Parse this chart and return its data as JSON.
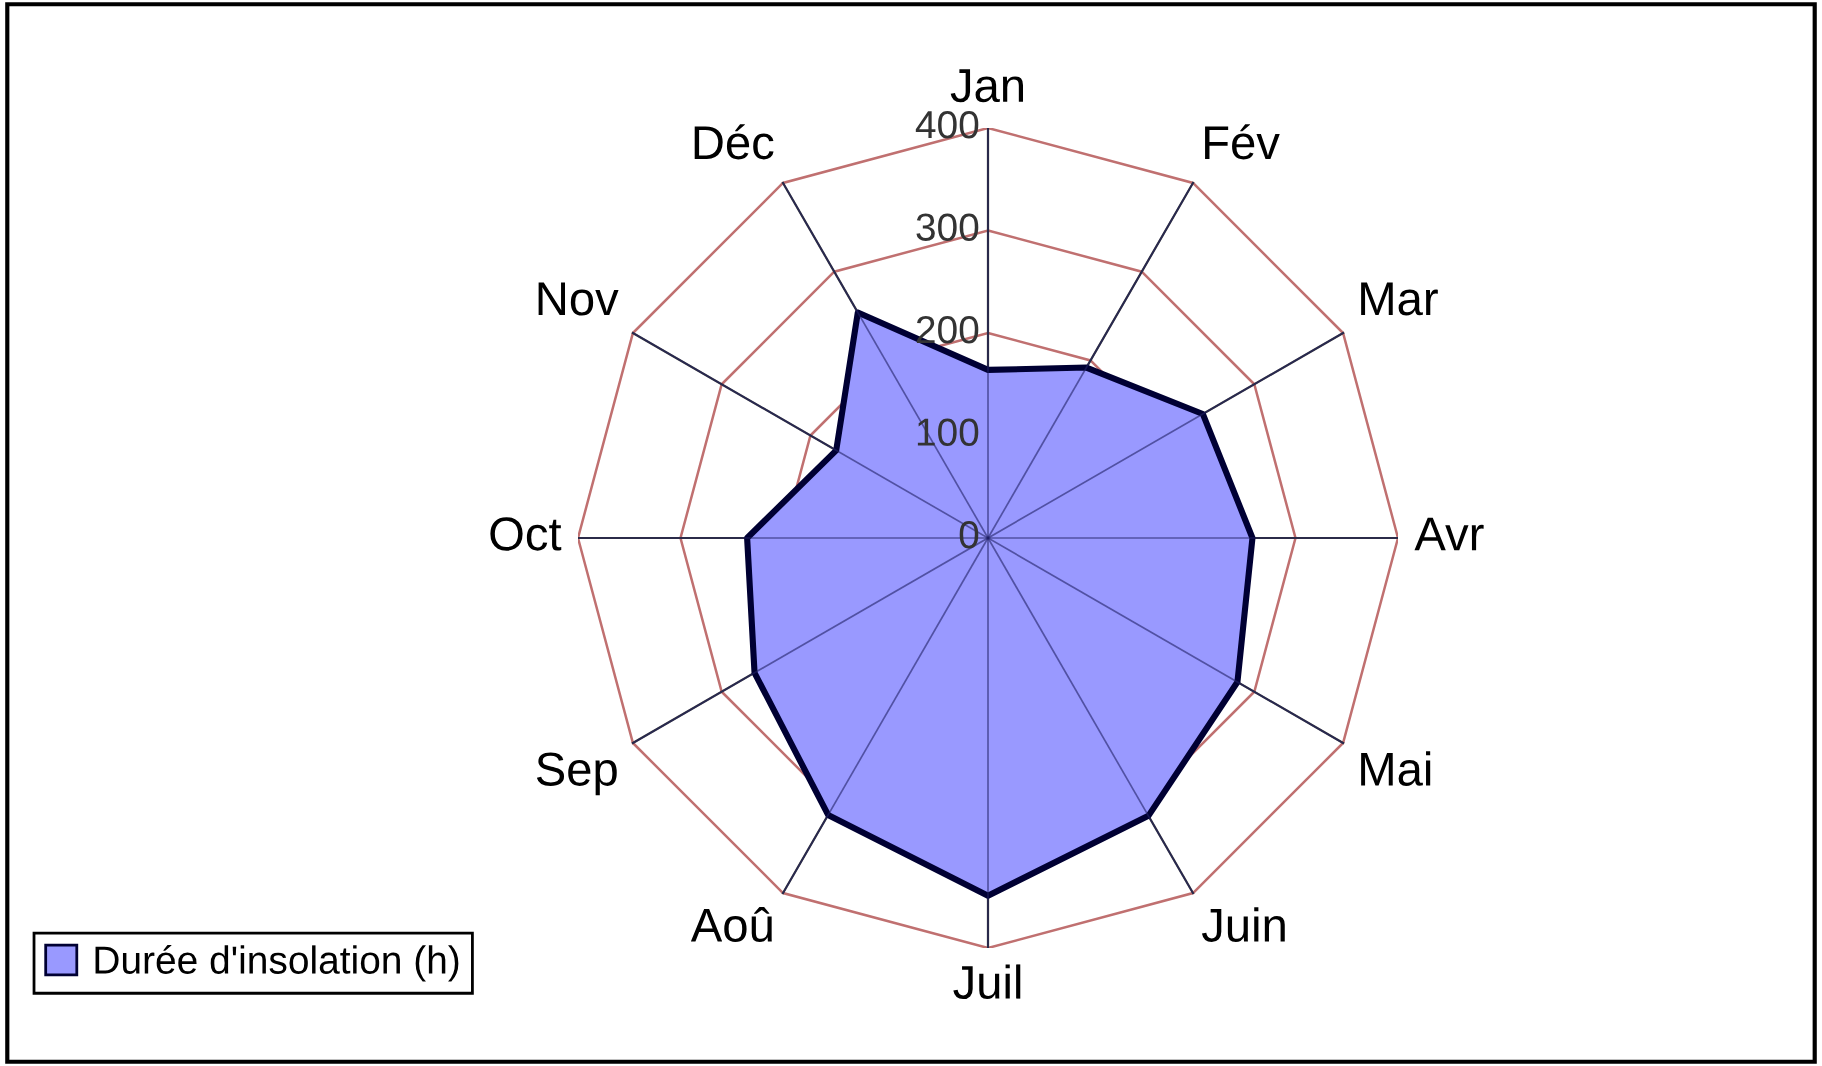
{
  "chart_data": {
    "type": "radar",
    "categories": [
      "Jan",
      "Fév",
      "Mar",
      "Avr",
      "Mai",
      "Juin",
      "Juil",
      "Aoû",
      "Sep",
      "Oct",
      "Nov",
      "Déc"
    ],
    "series": [
      {
        "name": "Durée d'insolation (h)",
        "color": "#9999ff",
        "values": [
          164,
          192,
          242,
          258,
          281,
          313,
          349,
          312,
          263,
          235,
          171,
          254
        ]
      }
    ],
    "ylim": [
      0,
      400
    ],
    "yticks": [
      0,
      100,
      200,
      300,
      400
    ],
    "legend": "bottom left"
  }
}
